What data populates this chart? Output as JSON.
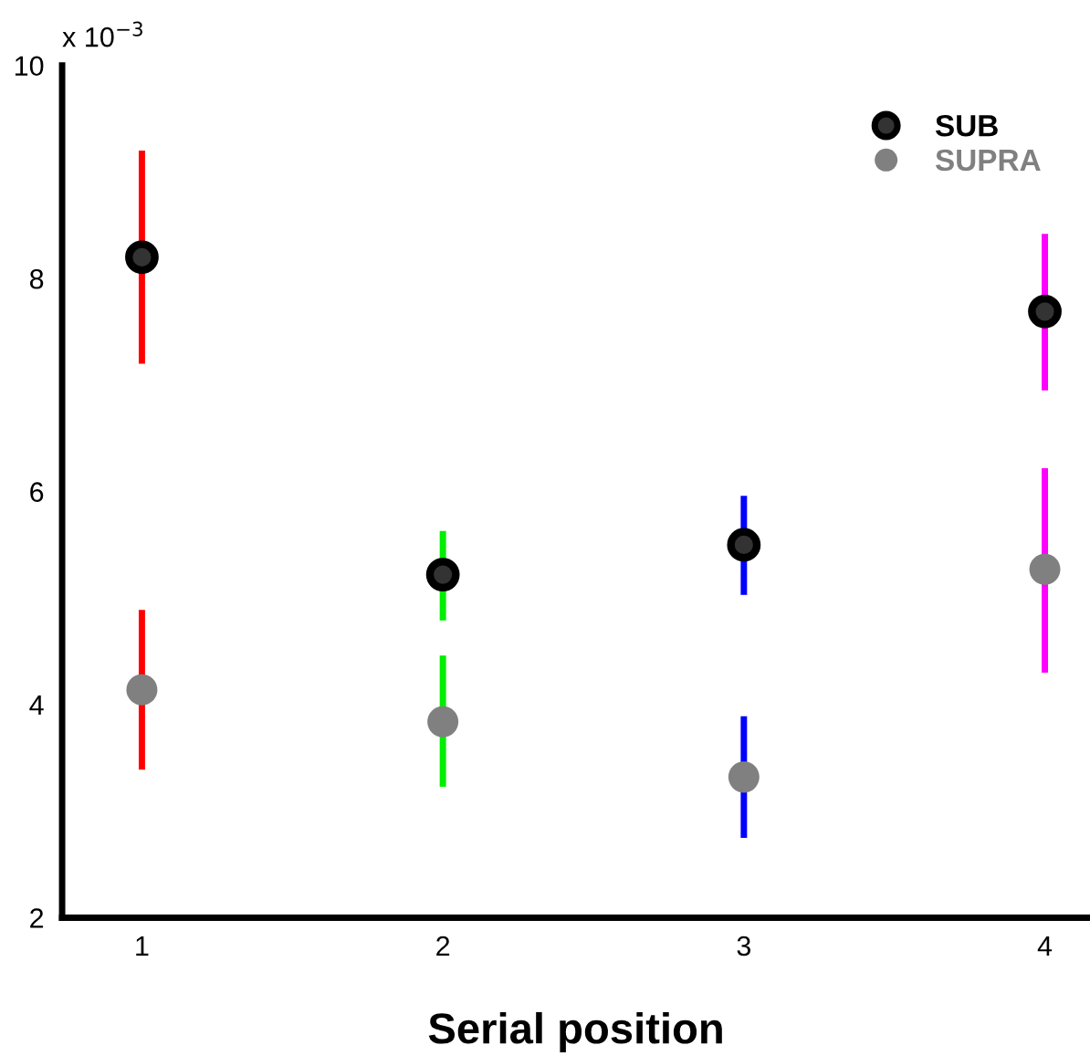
{
  "chart_data": {
    "type": "scatter",
    "xlabel": "Serial position",
    "categories": [
      "1",
      "2",
      "3",
      "4"
    ],
    "colors": [
      "#ff0000",
      "#00ee00",
      "#0000ff",
      "#ff00ff"
    ],
    "series": [
      {
        "name": "SUB",
        "color": "#000000",
        "values": [
          8.2,
          5.22,
          5.5,
          7.69
        ],
        "errors": [
          [
            7.2,
            9.2
          ],
          [
            4.79,
            5.63
          ],
          [
            5.03,
            5.96
          ],
          [
            6.95,
            8.42
          ]
        ]
      },
      {
        "name": "SUPRA",
        "color": "#808080",
        "values": [
          4.14,
          3.84,
          3.32,
          5.27
        ],
        "errors": [
          [
            3.39,
            4.89
          ],
          [
            3.23,
            4.46
          ],
          [
            2.75,
            3.89
          ],
          [
            4.3,
            6.22
          ]
        ]
      }
    ],
    "ylim": [
      2,
      10
    ],
    "yticks": [
      2,
      4,
      6,
      8,
      10
    ],
    "annotations": [
      "x 10$^{−3}$"
    ],
    "legend": "top right",
    "grid": false,
    "marker": "circle"
  }
}
